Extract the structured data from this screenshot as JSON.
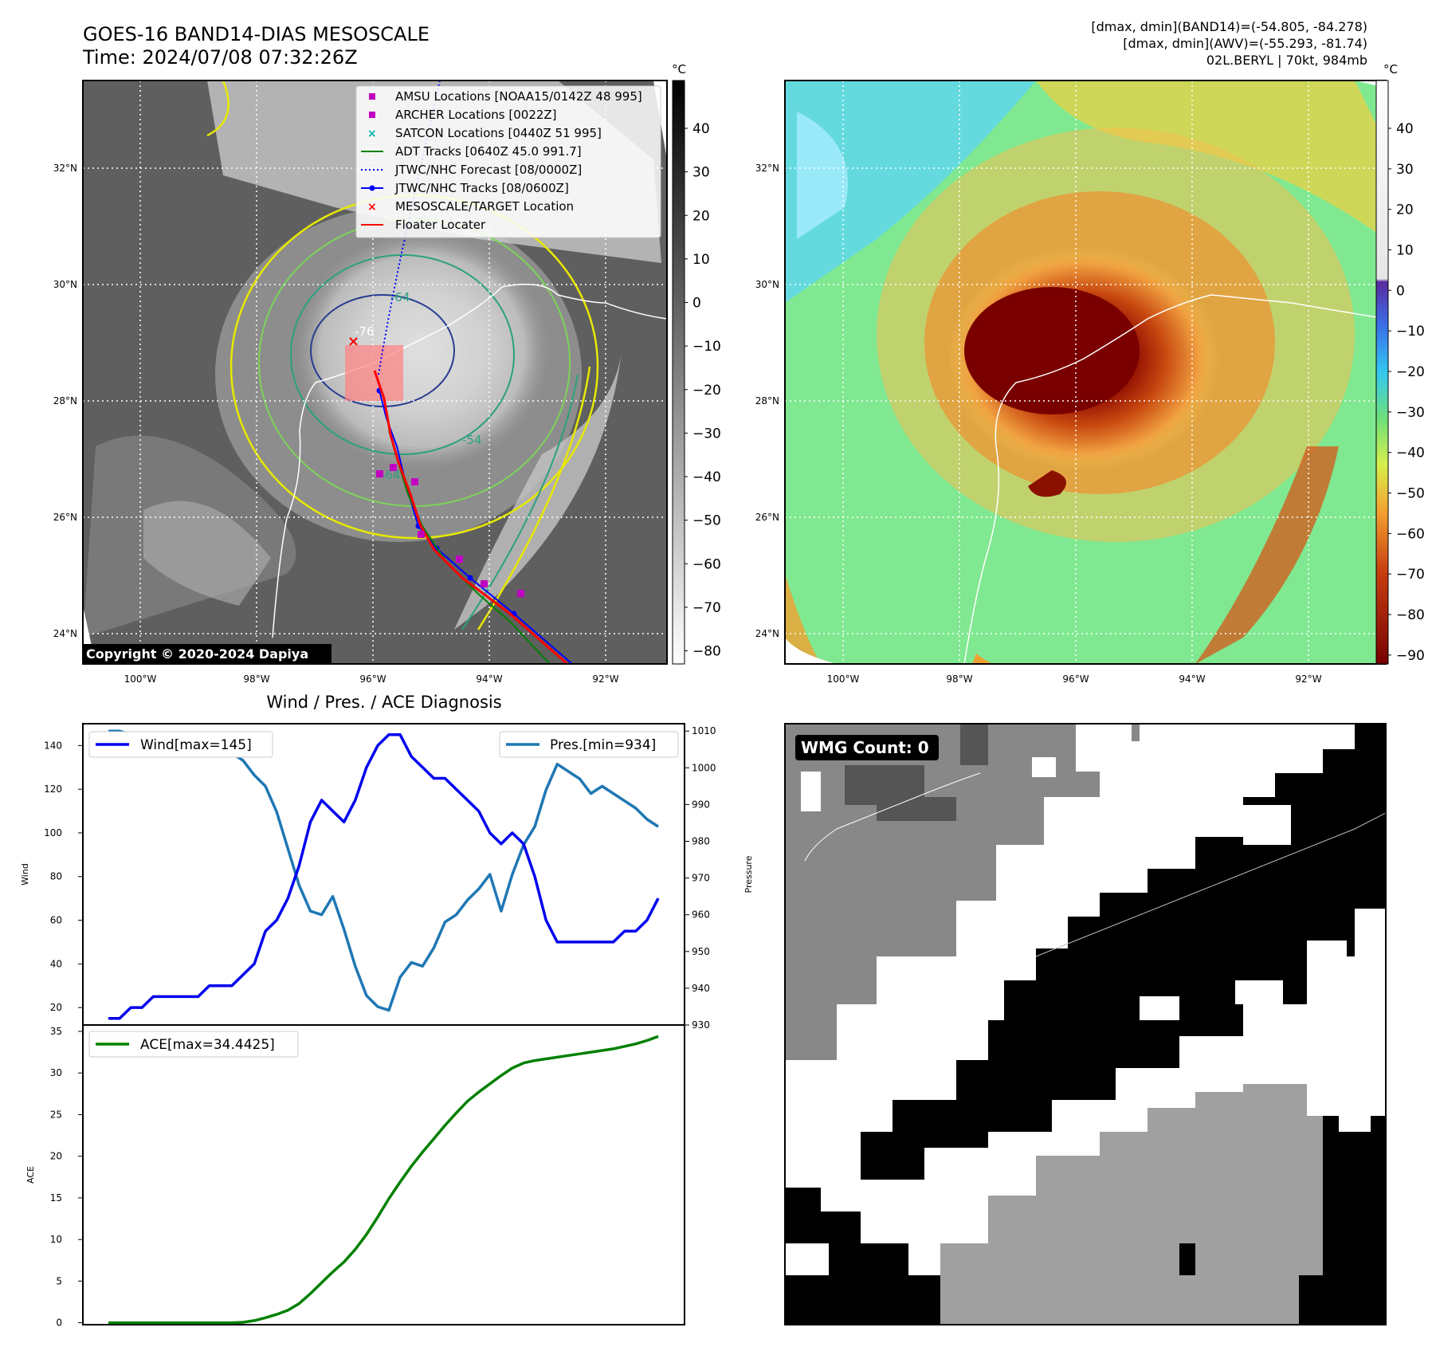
{
  "header": {
    "title_line1": "GOES-16 BAND14-DIAS MESOSCALE",
    "title_line2": "Time: 2024/07/08 07:32:26Z",
    "info_line1": "[dmax, dmin](BAND14)=(-54.805, -84.278)",
    "info_line2": "[dmax, dmin](AWV)=(-55.293, -81.74)",
    "info_line3": "02L.BERYL | 70kt, 984mb"
  },
  "map": {
    "lon_ticks": [
      "100°W",
      "98°W",
      "96°W",
      "94°W",
      "92°W"
    ],
    "lat_ticks": [
      "32°N",
      "30°N",
      "28°N",
      "26°N",
      "24°N"
    ],
    "copyright": "Copyright © 2020-2024 Dapiya",
    "contour_labels": [
      "-64",
      "-76",
      "-54",
      "-64"
    ],
    "legend": [
      {
        "label": "AMSU Locations [NOAA15/0142Z 48 995]",
        "marker": "square",
        "color": "#c000c0"
      },
      {
        "label": "ARCHER Locations [0022Z]",
        "marker": "square",
        "color": "#c000c0"
      },
      {
        "label": "SATCON Locations [0440Z 51 995]",
        "marker": "x",
        "color": "#00b0b0"
      },
      {
        "label": "ADT Tracks [0640Z 45.0 991.7]",
        "marker": "line",
        "color": "#008000"
      },
      {
        "label": "JTWC/NHC Forecast [08/0000Z]",
        "marker": "dotted",
        "color": "#0000ff"
      },
      {
        "label": "JTWC/NHC Tracks [08/0600Z]",
        "marker": "line-dot",
        "color": "#0000ff"
      },
      {
        "label": "MESOSCALE/TARGET Location",
        "marker": "x",
        "color": "#ff0000"
      },
      {
        "label": "Floater Locater",
        "marker": "line",
        "color": "#ff0000"
      }
    ]
  },
  "colorbar_band14": {
    "unit": "°C",
    "ticks": [
      "40",
      "30",
      "20",
      "10",
      "0",
      "−10",
      "−20",
      "−30",
      "−40",
      "−50",
      "−60",
      "−70",
      "−80"
    ]
  },
  "colorbar_awv": {
    "unit": "°C",
    "ticks": [
      "40",
      "30",
      "20",
      "10",
      "0",
      "−10",
      "−20",
      "−30",
      "−40",
      "−50",
      "−60",
      "−70",
      "−80",
      "−90"
    ]
  },
  "wmg": {
    "badge": "WMG Count: 0"
  },
  "chart_data": [
    {
      "type": "line",
      "title": "Wind / Pres. / ACE Diagnosis",
      "ylabel": "Wind",
      "y2label": "Pressure",
      "ylim": [
        12,
        150
      ],
      "y2lim": [
        930,
        1012
      ],
      "yticks": [
        20,
        40,
        60,
        80,
        100,
        120,
        140
      ],
      "y2ticks": [
        930,
        940,
        950,
        960,
        970,
        980,
        990,
        1000,
        1010
      ],
      "x": [
        0,
        1,
        2,
        3,
        4,
        5,
        6,
        7,
        8,
        9,
        10,
        11,
        12,
        13,
        14,
        15,
        16,
        17,
        18,
        19,
        20,
        21,
        22,
        23,
        24,
        25,
        26,
        27,
        28,
        29,
        30,
        31,
        32,
        33,
        34,
        35,
        36,
        37,
        38,
        39,
        40,
        41,
        42,
        43,
        44,
        45,
        46,
        47,
        48,
        49
      ],
      "series": [
        {
          "name": "Wind[max=145]",
          "axis": "left",
          "color": "#0000ee",
          "values": [
            15,
            15,
            20,
            20,
            25,
            25,
            25,
            25,
            25,
            30,
            30,
            30,
            35,
            40,
            55,
            60,
            70,
            85,
            105,
            115,
            110,
            105,
            115,
            130,
            140,
            145,
            145,
            135,
            130,
            125,
            125,
            120,
            115,
            110,
            100,
            95,
            100,
            95,
            80,
            60,
            50,
            50,
            50,
            50,
            50,
            50,
            55,
            55,
            60,
            70
          ]
        },
        {
          "name": "Pres.[min=934]",
          "axis": "right",
          "color": "#1f77b4",
          "values": [
            1010,
            1010,
            1009,
            1008,
            1008,
            1007,
            1006,
            1006,
            1005,
            1005,
            1005,
            1004,
            1002,
            998,
            995,
            988,
            978,
            968,
            961,
            960,
            965,
            956,
            946,
            938,
            935,
            934,
            943,
            947,
            946,
            951,
            958,
            960,
            964,
            967,
            971,
            961,
            971,
            979,
            984,
            994,
            1001,
            999,
            997,
            993,
            995,
            993,
            991,
            989,
            986,
            984
          ]
        },
        {
          "name": "ACE[max=34.4425]",
          "axis": "ace",
          "color": "#008000",
          "values": [
            0,
            0,
            0,
            0,
            0,
            0,
            0,
            0,
            0,
            0,
            0,
            0,
            0.05,
            0.25,
            0.6,
            1.0,
            1.5,
            2.3,
            3.5,
            4.8,
            6.1,
            7.3,
            8.8,
            10.6,
            12.7,
            14.9,
            16.9,
            18.8,
            20.5,
            22.1,
            23.7,
            25.2,
            26.6,
            27.7,
            28.7,
            29.7,
            30.6,
            31.2,
            31.5,
            31.7,
            31.9,
            32.1,
            32.3,
            32.5,
            32.7,
            32.9,
            33.2,
            33.5,
            33.9,
            34.4
          ]
        }
      ],
      "ace_ylabel": "ACE",
      "ace_ylim": [
        -1,
        35
      ],
      "ace_yticks": [
        0,
        5,
        10,
        15,
        20,
        25,
        30,
        35
      ]
    }
  ]
}
